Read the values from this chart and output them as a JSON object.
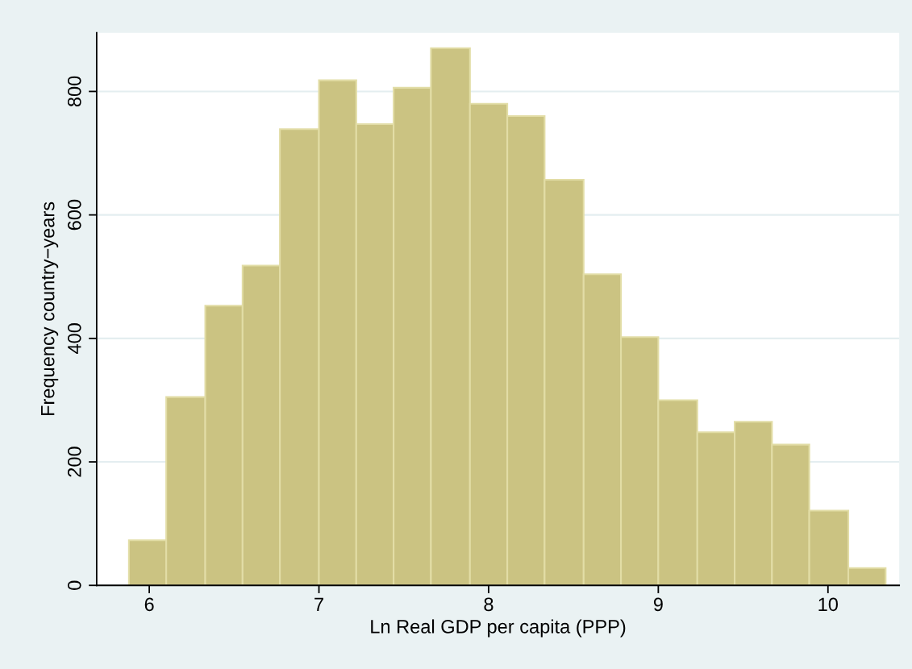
{
  "chart_data": {
    "type": "histogram",
    "xlabel": "Ln Real GDP per capita (PPP)",
    "ylabel": "Frequency country−years",
    "bins": [
      5.88,
      6.1,
      6.33,
      6.55,
      6.77,
      7.0,
      7.22,
      7.44,
      7.66,
      7.89,
      8.11,
      8.33,
      8.56,
      8.78,
      9.0,
      9.23,
      9.45,
      9.67,
      9.89,
      10.12,
      10.34
    ],
    "values": [
      73,
      305,
      453,
      518,
      739,
      818,
      747,
      806,
      870,
      780,
      760,
      657,
      504,
      402,
      300,
      248,
      265,
      228,
      121,
      28
    ],
    "color": "#cbc382",
    "xlim": [
      5.69,
      10.42
    ],
    "xticks": [
      6,
      7,
      8,
      9,
      10
    ],
    "ylim": [
      0,
      895
    ],
    "yticks": [
      0,
      200,
      400,
      600,
      800
    ],
    "grid": "y"
  }
}
